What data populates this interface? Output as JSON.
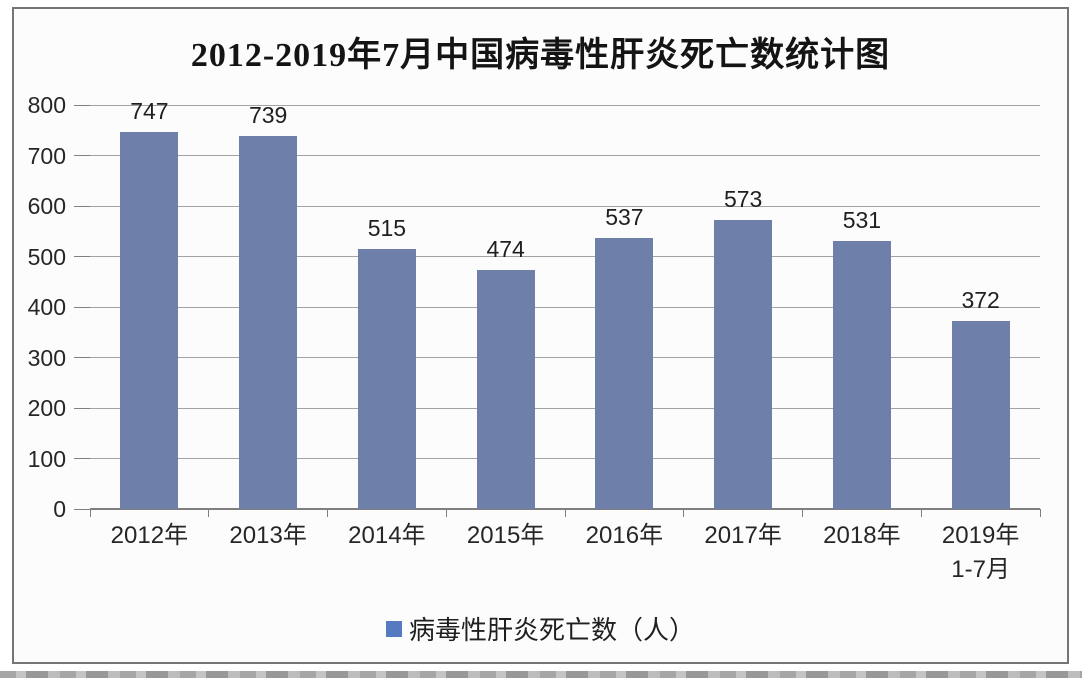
{
  "chart_data": {
    "type": "bar",
    "title": "2012-2019年7月中国病毒性肝炎死亡数统计图",
    "categories": [
      "2012年",
      "2013年",
      "2014年",
      "2015年",
      "2016年",
      "2017年",
      "2018年",
      "2019年\n1-7月"
    ],
    "values": [
      747,
      739,
      515,
      474,
      537,
      573,
      531,
      372
    ],
    "data_labels": [
      "747",
      "739",
      "515",
      "474",
      "537",
      "573",
      "531",
      "372"
    ],
    "series_name": "病毒性肝炎死亡数（人）",
    "legend": [
      {
        "label": "病毒性肝炎死亡数（人）",
        "marker_color": "#567ABF"
      }
    ],
    "legend_position": "bottom",
    "xlabel": "",
    "ylabel": "",
    "ylim": [
      0,
      800
    ],
    "yticks": [
      0,
      100,
      200,
      300,
      400,
      500,
      600,
      700,
      800
    ],
    "grid": true,
    "bar_color": "#6E7FA9"
  }
}
